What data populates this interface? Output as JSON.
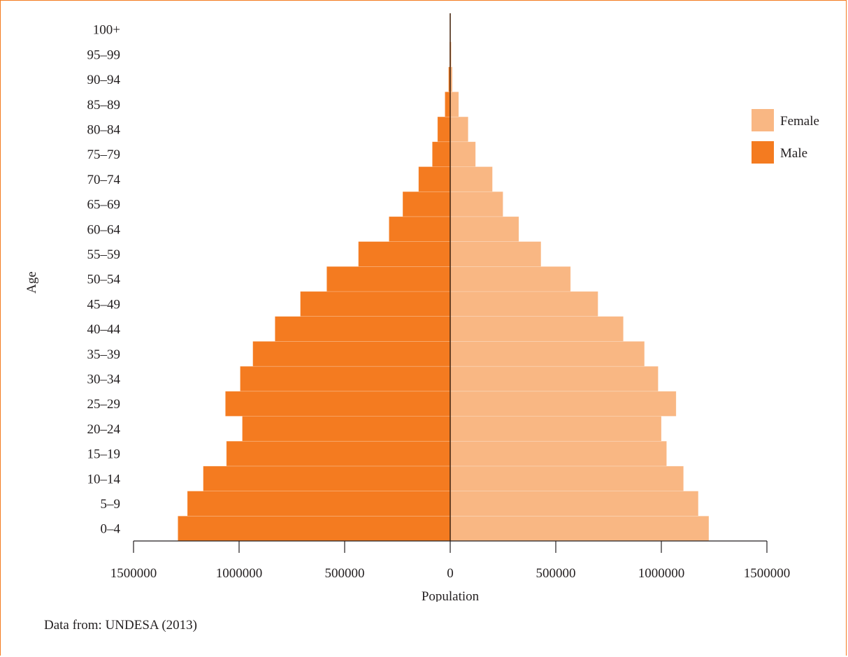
{
  "source_note": "Data from: UNDESA (2013)",
  "colors": {
    "female": "#f9b783",
    "male": "#f47b20",
    "axis": "#231f20",
    "frame": "#f47b20"
  },
  "chart_data": {
    "type": "bar",
    "orientation": "horizontal-population-pyramid",
    "title": "",
    "xlabel": "Population",
    "ylabel": "Age",
    "categories": [
      "0–4",
      "5–9",
      "10–14",
      "15–19",
      "20–24",
      "25–29",
      "30–34",
      "35–39",
      "40–44",
      "45–49",
      "50–54",
      "55–59",
      "60–64",
      "65–69",
      "70–74",
      "75–79",
      "80–84",
      "85–89",
      "90–94",
      "95–99",
      "100+"
    ],
    "x_ticks": [
      {
        "value": -1500000,
        "label": "1500000"
      },
      {
        "value": -1000000,
        "label": "1000000"
      },
      {
        "value": -500000,
        "label": "500000"
      },
      {
        "value": 0,
        "label": "0"
      },
      {
        "value": 500000,
        "label": "500000"
      },
      {
        "value": 1000000,
        "label": "1000000"
      },
      {
        "value": 1500000,
        "label": "1500000"
      }
    ],
    "xlim": [
      -1500000,
      1500000
    ],
    "legend_position": "right",
    "series": [
      {
        "name": "Female",
        "side": "right",
        "values": [
          1225000,
          1175000,
          1105000,
          1025000,
          1000000,
          1070000,
          985000,
          920000,
          820000,
          700000,
          570000,
          430000,
          325000,
          250000,
          200000,
          120000,
          85000,
          40000,
          10000,
          5000,
          1000
        ]
      },
      {
        "name": "Male",
        "side": "left",
        "values": [
          1290000,
          1245000,
          1170000,
          1060000,
          985000,
          1065000,
          995000,
          935000,
          830000,
          710000,
          585000,
          435000,
          290000,
          225000,
          150000,
          85000,
          60000,
          25000,
          8000,
          3000,
          1000
        ]
      }
    ]
  }
}
